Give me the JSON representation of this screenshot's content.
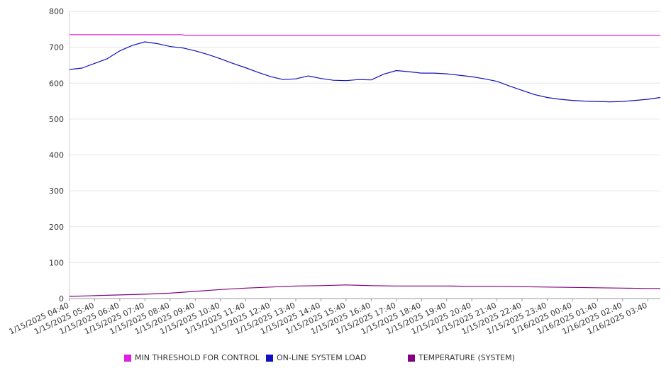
{
  "chart_data": {
    "type": "line",
    "title": "",
    "xlabel": "",
    "ylabel": "",
    "ylim": [
      0,
      800
    ],
    "yticks": [
      0,
      100,
      200,
      300,
      400,
      500,
      600,
      700,
      800
    ],
    "grid": true,
    "legend_position": "bottom",
    "x_tick_labels": [
      "1/15/2025 04:40",
      "1/15/2025 05:40",
      "1/15/2025 06:40",
      "1/15/2025 07:40",
      "1/15/2025 08:40",
      "1/15/2025 09:40",
      "1/15/2025 10:40",
      "1/15/2025 11:40",
      "1/15/2025 12:40",
      "1/15/2025 13:40",
      "1/15/2025 14:40",
      "1/15/2025 15:40",
      "1/15/2025 16:40",
      "1/15/2025 17:40",
      "1/15/2025 18:40",
      "1/15/2025 19:40",
      "1/15/2025 20:40",
      "1/15/2025 21:40",
      "1/15/2025 22:40",
      "1/15/2025 23:40",
      "1/16/2025 00:40",
      "1/16/2025 01:40",
      "1/16/2025 02:40",
      "1/16/2025 03:40"
    ],
    "x_end": "1/16/2025 04:10",
    "series": [
      {
        "name": "MIN THRESHOLD FOR CONTROL",
        "color": "#e020e0",
        "points": [
          [
            "1/15/2025 04:40",
            735
          ],
          [
            "1/15/2025 09:10",
            735
          ],
          [
            "1/15/2025 09:15",
            733
          ],
          [
            "1/16/2025 04:10",
            733
          ]
        ]
      },
      {
        "name": "ON-LINE SYSTEM LOAD",
        "color": "#1010c0",
        "points": [
          [
            "1/15/2025 04:40",
            638
          ],
          [
            "1/15/2025 05:10",
            642
          ],
          [
            "1/15/2025 05:40",
            655
          ],
          [
            "1/15/2025 06:10",
            668
          ],
          [
            "1/15/2025 06:40",
            690
          ],
          [
            "1/15/2025 07:10",
            705
          ],
          [
            "1/15/2025 07:40",
            715
          ],
          [
            "1/15/2025 08:10",
            710
          ],
          [
            "1/15/2025 08:40",
            702
          ],
          [
            "1/15/2025 09:10",
            698
          ],
          [
            "1/15/2025 09:40",
            690
          ],
          [
            "1/15/2025 10:10",
            680
          ],
          [
            "1/15/2025 10:40",
            668
          ],
          [
            "1/15/2025 11:10",
            655
          ],
          [
            "1/15/2025 11:40",
            643
          ],
          [
            "1/15/2025 12:10",
            630
          ],
          [
            "1/15/2025 12:40",
            618
          ],
          [
            "1/15/2025 13:10",
            610
          ],
          [
            "1/15/2025 13:40",
            612
          ],
          [
            "1/15/2025 14:10",
            620
          ],
          [
            "1/15/2025 14:40",
            613
          ],
          [
            "1/15/2025 15:10",
            608
          ],
          [
            "1/15/2025 15:40",
            607
          ],
          [
            "1/15/2025 16:10",
            610
          ],
          [
            "1/15/2025 16:40",
            609
          ],
          [
            "1/15/2025 17:10",
            625
          ],
          [
            "1/15/2025 17:40",
            635
          ],
          [
            "1/15/2025 18:10",
            632
          ],
          [
            "1/15/2025 18:40",
            628
          ],
          [
            "1/15/2025 19:10",
            628
          ],
          [
            "1/15/2025 19:40",
            626
          ],
          [
            "1/15/2025 20:10",
            622
          ],
          [
            "1/15/2025 20:40",
            618
          ],
          [
            "1/15/2025 21:10",
            612
          ],
          [
            "1/15/2025 21:40",
            605
          ],
          [
            "1/15/2025 22:10",
            592
          ],
          [
            "1/15/2025 22:40",
            580
          ],
          [
            "1/15/2025 23:10",
            568
          ],
          [
            "1/15/2025 23:40",
            560
          ],
          [
            "1/16/2025 00:10",
            555
          ],
          [
            "1/16/2025 00:40",
            552
          ],
          [
            "1/16/2025 01:10",
            550
          ],
          [
            "1/16/2025 01:40",
            549
          ],
          [
            "1/16/2025 02:10",
            548
          ],
          [
            "1/16/2025 02:40",
            549
          ],
          [
            "1/16/2025 03:10",
            552
          ],
          [
            "1/16/2025 03:40",
            555
          ],
          [
            "1/16/2025 04:10",
            560
          ]
        ]
      },
      {
        "name": "TEMPERATURE (SYSTEM)",
        "color": "#800080",
        "points": [
          [
            "1/15/2025 04:40",
            6
          ],
          [
            "1/15/2025 05:40",
            8
          ],
          [
            "1/15/2025 06:40",
            10
          ],
          [
            "1/15/2025 07:40",
            12
          ],
          [
            "1/15/2025 08:40",
            15
          ],
          [
            "1/15/2025 09:40",
            20
          ],
          [
            "1/15/2025 10:40",
            25
          ],
          [
            "1/15/2025 11:40",
            29
          ],
          [
            "1/15/2025 12:40",
            32
          ],
          [
            "1/15/2025 13:40",
            35
          ],
          [
            "1/15/2025 14:40",
            36
          ],
          [
            "1/15/2025 15:40",
            38
          ],
          [
            "1/15/2025 16:40",
            36
          ],
          [
            "1/15/2025 17:40",
            35
          ],
          [
            "1/15/2025 18:40",
            35
          ],
          [
            "1/15/2025 19:40",
            35
          ],
          [
            "1/15/2025 20:40",
            34
          ],
          [
            "1/15/2025 21:40",
            34
          ],
          [
            "1/15/2025 22:40",
            33
          ],
          [
            "1/15/2025 23:40",
            32
          ],
          [
            "1/16/2025 00:40",
            31
          ],
          [
            "1/16/2025 01:40",
            30
          ],
          [
            "1/16/2025 02:40",
            29
          ],
          [
            "1/16/2025 03:40",
            28
          ],
          [
            "1/16/2025 04:10",
            28
          ]
        ]
      }
    ]
  }
}
